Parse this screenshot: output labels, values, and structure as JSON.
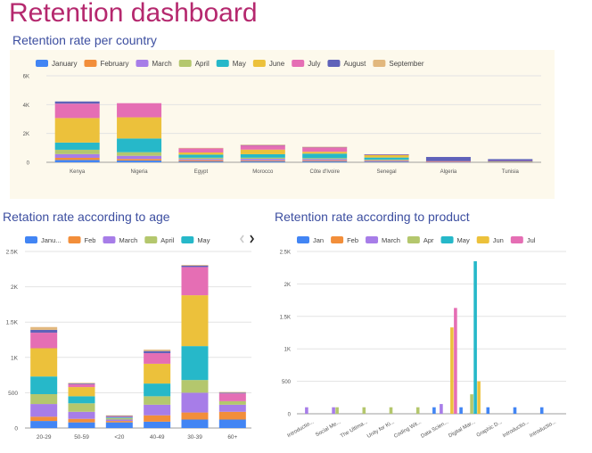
{
  "page": {
    "title": "Retention dashboard"
  },
  "controls": {
    "next_icon": "chevron-right-icon"
  },
  "sections": {
    "country": "Retention rate per country",
    "age": "Retation rate according to age",
    "product": "Retention rate according to product"
  },
  "colors": {
    "January": "#4285f4",
    "February": "#f28e3a",
    "March": "#a77de8",
    "April": "#b4c76d",
    "May": "#26b8c9",
    "June": "#ecc13b",
    "July": "#e56eb4",
    "August": "#5f62b9",
    "September": "#e2b87e",
    "country_panel_bg": "#fdf9ec",
    "title": "#b5286e",
    "section_title": "#3c4ea0"
  },
  "chart_data": [
    {
      "id": "country",
      "type": "bar",
      "stacked": true,
      "categories": [
        "Kenya",
        "Nigeria",
        "Egypt",
        "Morocco",
        "Côte d'Ivoire",
        "Senegal",
        "Algeria",
        "Tunisia"
      ],
      "series": [
        {
          "name": "January",
          "values": [
            160,
            120,
            60,
            70,
            70,
            50,
            10,
            10
          ]
        },
        {
          "name": "February",
          "values": [
            150,
            110,
            80,
            60,
            60,
            40,
            20,
            10
          ]
        },
        {
          "name": "March",
          "values": [
            260,
            220,
            90,
            110,
            90,
            50,
            20,
            10
          ]
        },
        {
          "name": "April",
          "values": [
            300,
            250,
            90,
            80,
            70,
            50,
            10,
            10
          ]
        },
        {
          "name": "May",
          "values": [
            500,
            950,
            210,
            240,
            310,
            140,
            0,
            20
          ]
        },
        {
          "name": "June",
          "values": [
            1700,
            1470,
            150,
            320,
            130,
            190,
            10,
            20
          ]
        },
        {
          "name": "July",
          "values": [
            1000,
            980,
            300,
            300,
            320,
            20,
            10,
            10
          ]
        },
        {
          "name": "August",
          "values": [
            150,
            0,
            0,
            20,
            10,
            10,
            290,
            130
          ]
        },
        {
          "name": "September",
          "values": [
            0,
            0,
            20,
            20,
            10,
            0,
            0,
            0
          ]
        }
      ],
      "yticks": [
        0,
        2000,
        4000,
        6000
      ],
      "ytick_labels": [
        "0",
        "2K",
        "4K",
        "6K"
      ],
      "ylim": [
        0,
        6000
      ],
      "legend": "top-left",
      "grid": true
    },
    {
      "id": "age",
      "type": "bar",
      "stacked": true,
      "categories": [
        "20-29",
        "50-59",
        "<20",
        "40-49",
        "30-39",
        "60+"
      ],
      "legend_labels": [
        "Janu...",
        "Feb",
        "March",
        "April",
        "May"
      ],
      "series": [
        {
          "name": "January",
          "values": [
            100,
            80,
            80,
            90,
            120,
            120
          ]
        },
        {
          "name": "February",
          "values": [
            60,
            50,
            20,
            90,
            100,
            110
          ]
        },
        {
          "name": "March",
          "values": [
            180,
            100,
            20,
            150,
            280,
            100
          ]
        },
        {
          "name": "April",
          "values": [
            140,
            120,
            20,
            120,
            180,
            50
          ]
        },
        {
          "name": "May",
          "values": [
            250,
            100,
            10,
            180,
            480,
            0
          ]
        },
        {
          "name": "June",
          "values": [
            400,
            130,
            0,
            280,
            720,
            0
          ]
        },
        {
          "name": "July",
          "values": [
            220,
            40,
            10,
            150,
            400,
            110
          ]
        },
        {
          "name": "August",
          "values": [
            40,
            10,
            10,
            30,
            20,
            10
          ]
        },
        {
          "name": "September",
          "values": [
            40,
            10,
            10,
            20,
            10,
            10
          ]
        }
      ],
      "yticks": [
        0,
        500,
        1000,
        1500,
        2000,
        2500
      ],
      "ytick_labels": [
        "0",
        "500",
        "1K",
        "1.5K",
        "2K",
        "2.5K"
      ],
      "ylim": [
        0,
        2500
      ],
      "legend": "top-left",
      "grid": true
    },
    {
      "id": "product",
      "type": "bar",
      "stacked": false,
      "categories": [
        "Introductio...",
        "Social Me...",
        "The Ultima...",
        "Unity for Ki...",
        "Coding Wit...",
        "Data Scien...",
        "Digital Mar...",
        "Graphic D...",
        "Introductio...",
        "Introductio..."
      ],
      "legend_labels": [
        "Jan",
        "Feb",
        "March",
        "Apr",
        "May",
        "Jun",
        "Jul"
      ],
      "series": [
        {
          "name": "January",
          "values": [
            0,
            0,
            0,
            0,
            0,
            100,
            100,
            100,
            100,
            100
          ]
        },
        {
          "name": "February",
          "values": [
            0,
            0,
            0,
            0,
            0,
            0,
            0,
            0,
            0,
            0
          ]
        },
        {
          "name": "March",
          "values": [
            100,
            100,
            0,
            0,
            0,
            150,
            0,
            0,
            0,
            0
          ]
        },
        {
          "name": "April",
          "values": [
            0,
            100,
            100,
            100,
            100,
            0,
            300,
            0,
            0,
            0
          ]
        },
        {
          "name": "May",
          "values": [
            0,
            0,
            0,
            0,
            0,
            0,
            2350,
            0,
            0,
            0
          ]
        },
        {
          "name": "June",
          "values": [
            0,
            0,
            0,
            0,
            0,
            1330,
            500,
            0,
            0,
            0
          ]
        },
        {
          "name": "July",
          "values": [
            0,
            0,
            0,
            0,
            0,
            1630,
            0,
            0,
            0,
            0
          ]
        }
      ],
      "yticks": [
        0,
        500,
        1000,
        1500,
        2000,
        2500
      ],
      "ytick_labels": [
        "0",
        "500",
        "1K",
        "1.5K",
        "2K",
        "2.5K"
      ],
      "ylim": [
        0,
        2500
      ],
      "legend": "top-left",
      "grid": true
    }
  ]
}
